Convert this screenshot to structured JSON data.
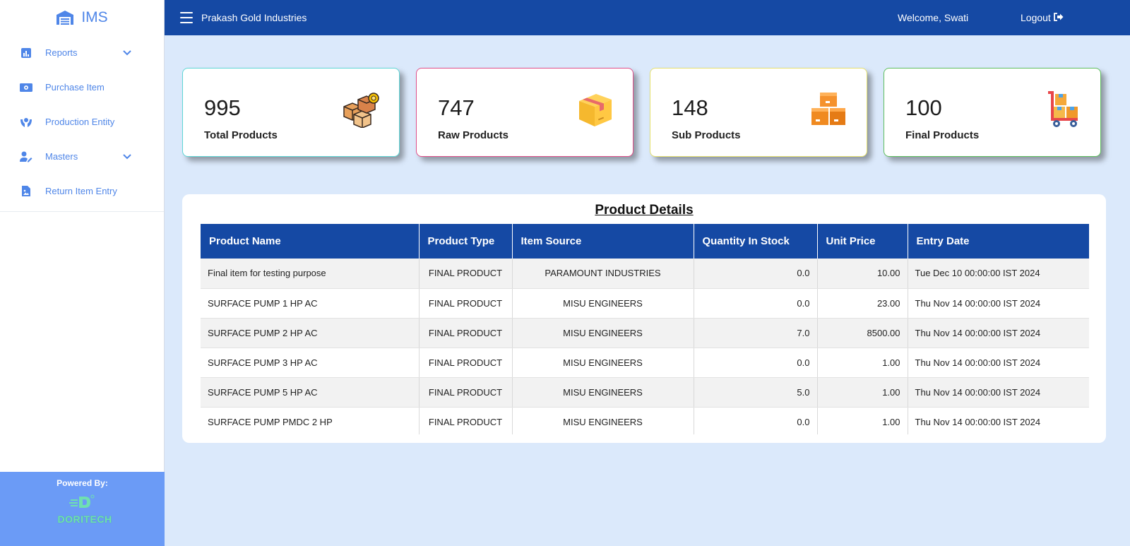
{
  "app": {
    "brand": "IMS",
    "company": "Prakash Gold Industries",
    "welcome": "Welcome, Swati",
    "logout": "Logout"
  },
  "sidebar": {
    "items": [
      {
        "label": "Reports",
        "icon": "bar-chart-icon",
        "expandable": true
      },
      {
        "label": "Purchase Item",
        "icon": "money-bill-icon",
        "expandable": false
      },
      {
        "label": "Production Entity",
        "icon": "hands-holding-icon",
        "expandable": false
      },
      {
        "label": "Masters",
        "icon": "user-edit-icon",
        "expandable": true
      },
      {
        "label": "Return Item Entry",
        "icon": "file-image-icon",
        "expandable": false
      }
    ],
    "powered_by": "Powered By:",
    "powered_logo_text": "DORITECH"
  },
  "cards": [
    {
      "value": "995",
      "label": "Total Products",
      "border": "#5fd6d6",
      "icon": "boxes-icon"
    },
    {
      "value": "747",
      "label": "Raw Products",
      "border": "#e0508a",
      "icon": "box-icon"
    },
    {
      "value": "148",
      "label": "Sub Products",
      "border": "#e5e070",
      "icon": "stacked-boxes-icon"
    },
    {
      "value": "100",
      "label": "Final Products",
      "border": "#5fbf5f",
      "icon": "hand-truck-icon"
    }
  ],
  "table": {
    "title": "Product Details",
    "columns": [
      "Product Name",
      "Product Type",
      "Item Source",
      "Quantity In Stock",
      "Unit Price",
      "Entry Date"
    ],
    "rows": [
      [
        "Final item for testing purpose",
        "FINAL PRODUCT",
        "PARAMOUNT INDUSTRIES",
        "0.0",
        "10.00",
        "Tue Dec 10 00:00:00 IST 2024"
      ],
      [
        "SURFACE PUMP 1 HP AC",
        "FINAL PRODUCT",
        "MISU ENGINEERS",
        "0.0",
        "23.00",
        "Thu Nov 14 00:00:00 IST 2024"
      ],
      [
        "SURFACE PUMP 2 HP AC",
        "FINAL PRODUCT",
        "MISU ENGINEERS",
        "7.0",
        "8500.00",
        "Thu Nov 14 00:00:00 IST 2024"
      ],
      [
        "SURFACE PUMP 3 HP AC",
        "FINAL PRODUCT",
        "MISU ENGINEERS",
        "0.0",
        "1.00",
        "Thu Nov 14 00:00:00 IST 2024"
      ],
      [
        "SURFACE PUMP 5 HP AC",
        "FINAL PRODUCT",
        "MISU ENGINEERS",
        "5.0",
        "1.00",
        "Thu Nov 14 00:00:00 IST 2024"
      ],
      [
        "SURFACE PUMP PMDC 2 HP",
        "FINAL PRODUCT",
        "MISU ENGINEERS",
        "0.0",
        "1.00",
        "Thu Nov 14 00:00:00 IST 2024"
      ]
    ]
  }
}
